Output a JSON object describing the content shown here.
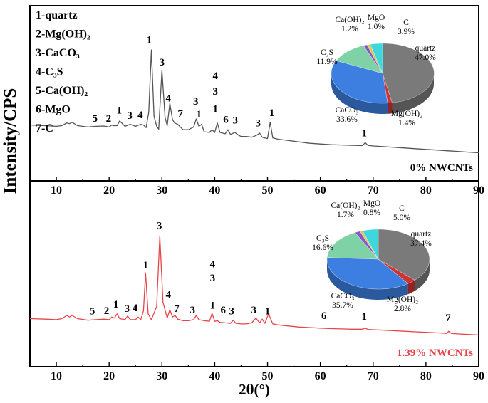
{
  "figure": {
    "ylabel": "Intensity/CPS",
    "xlabel": "2θ(°)",
    "legend": [
      "1-quartz",
      "2-Mg(OH)₂",
      "3-CaCO₃",
      "4-C₃S",
      "5-Ca(OH)₂",
      "6-MgO",
      "7-C"
    ],
    "colors": {
      "top": "#555555",
      "bottom": "#e8454a",
      "quartz": "#7a7a7a",
      "caco3": "#3d7fe0",
      "c3s": "#7fd1a6",
      "mgoh2": "#cc3333",
      "caoh2": "#8a56c7",
      "mgo": "#e3c84a",
      "c": "#3fd7de"
    }
  },
  "chart_data": [
    {
      "type": "line",
      "panel": "top",
      "title": "",
      "label": "0% NWCNTs",
      "xlabel": "2θ(°)",
      "ylabel": "Intensity/CPS",
      "xlim": [
        5,
        90
      ],
      "x_ticks": [
        "10",
        "20",
        "30",
        "40",
        "50",
        "60",
        "70",
        "80",
        "90"
      ],
      "x": [
        5,
        8,
        10,
        11,
        12,
        12.5,
        13,
        14,
        16,
        17.5,
        19,
        20,
        20.5,
        20.8,
        21.5,
        22,
        23,
        24,
        25,
        26,
        26.5,
        27,
        27.5,
        28,
        28.5,
        29,
        29.4,
        30,
        30.6,
        31,
        31.5,
        32,
        32.4,
        33,
        34,
        35,
        36,
        36.5,
        37,
        37.5,
        38,
        39,
        39.5,
        40,
        40.5,
        41,
        42,
        42.5,
        43,
        43.8,
        44.5,
        45,
        46,
        47,
        48,
        48.5,
        49,
        50,
        50.5,
        51,
        52,
        54,
        56,
        58,
        60,
        62,
        64,
        66,
        68,
        68.5,
        69,
        70,
        72,
        74,
        76,
        78,
        80,
        82,
        84,
        86,
        88,
        90
      ],
      "y": [
        31,
        30,
        29,
        30,
        34,
        33,
        35,
        30,
        28,
        29,
        29.5,
        28,
        31,
        30,
        30,
        37,
        29,
        32,
        29,
        32,
        31,
        27,
        50,
        142,
        44,
        29,
        25,
        112,
        42,
        30,
        63,
        39,
        34,
        32,
        24,
        24,
        28,
        40,
        29,
        32,
        21,
        20,
        24,
        20,
        34,
        20,
        18,
        24,
        17,
        20,
        16,
        14,
        14,
        13,
        16,
        19,
        13,
        11,
        35,
        12,
        10,
        8,
        6,
        4,
        3,
        2,
        1.5,
        1,
        0.5,
        5,
        1,
        0,
        -1,
        -2,
        -3,
        -4,
        -5,
        -6,
        -7,
        -8,
        -9,
        -10
      ],
      "peak_labels": [
        {
          "x": 17.3,
          "y": 36,
          "text": "5"
        },
        {
          "x": 19.9,
          "y": 36,
          "text": "2"
        },
        {
          "x": 21.9,
          "y": 48,
          "text": "1"
        },
        {
          "x": 23.9,
          "y": 40,
          "text": "3"
        },
        {
          "x": 25.9,
          "y": 41,
          "text": "4"
        },
        {
          "x": 27.6,
          "y": 152,
          "text": "1"
        },
        {
          "x": 30.0,
          "y": 119,
          "text": "3"
        },
        {
          "x": 31.2,
          "y": 66,
          "text": "4"
        },
        {
          "x": 33.5,
          "y": 43,
          "text": "7"
        },
        {
          "x": 36.4,
          "y": 61,
          "text": "3"
        },
        {
          "x": 37.0,
          "y": 42,
          "text": "1"
        },
        {
          "x": 40.1,
          "y": 99,
          "text": "4"
        },
        {
          "x": 40.1,
          "y": 76,
          "text": "3"
        },
        {
          "x": 40.1,
          "y": 50,
          "text": "1"
        },
        {
          "x": 42.1,
          "y": 34,
          "text": "6"
        },
        {
          "x": 43.9,
          "y": 33,
          "text": "3"
        },
        {
          "x": 48.2,
          "y": 29,
          "text": "3"
        },
        {
          "x": 50.8,
          "y": 44,
          "text": "1"
        },
        {
          "x": 68.3,
          "y": 14,
          "text": "1"
        }
      ],
      "pie": {
        "type": "pie",
        "slices": [
          {
            "label": "quartz",
            "value": 47.0,
            "text": "47.0%"
          },
          {
            "label": "Mg(OH)₂",
            "value": 1.4,
            "text": "1.4%"
          },
          {
            "label": "CaCO₃",
            "value": 33.6,
            "text": "33.6%"
          },
          {
            "label": "C₃S",
            "value": 11.9,
            "text": "11.9%"
          },
          {
            "label": "Ca(OH)₂",
            "value": 1.2,
            "text": "1.2%"
          },
          {
            "label": "MgO",
            "value": 1.0,
            "text": "1.0%"
          },
          {
            "label": "C",
            "value": 3.9,
            "text": "3.9%"
          }
        ]
      }
    },
    {
      "type": "line",
      "panel": "bottom",
      "title": "",
      "label": "1.39% NWCNTs",
      "xlabel": "2θ(°)",
      "ylabel": "Intensity/CPS",
      "xlim": [
        5,
        90
      ],
      "x_ticks": [
        "10",
        "20",
        "30",
        "40",
        "50",
        "60",
        "70",
        "80",
        "90"
      ],
      "x": [
        5,
        8,
        10,
        11,
        12,
        12.5,
        13,
        14,
        16,
        17.5,
        19,
        20,
        20.5,
        21,
        21.5,
        22,
        23,
        23.5,
        24,
        25,
        25.5,
        26,
        26.5,
        26.9,
        27.4,
        28,
        29,
        29.6,
        30.2,
        31,
        31.5,
        32,
        32.5,
        33,
        34,
        35,
        36,
        36.5,
        37,
        38,
        39,
        39.5,
        40,
        40.5,
        41,
        42,
        43,
        43.5,
        44,
        45,
        46,
        47,
        47.8,
        48.5,
        49,
        49.5,
        50.2,
        51,
        52,
        54,
        56,
        58,
        60,
        62,
        64,
        66,
        68,
        68.5,
        69,
        70,
        72,
        74,
        76,
        78,
        80,
        82,
        84,
        84.3,
        84.8,
        86,
        88,
        90
      ],
      "y": [
        21,
        20,
        19,
        21,
        27,
        24,
        27,
        21,
        18,
        19,
        20,
        19,
        24,
        22,
        30,
        21,
        19,
        26,
        19,
        19,
        24,
        19,
        36,
        108,
        30,
        19,
        44,
        178,
        52,
        22,
        38,
        24,
        27,
        20,
        17,
        17,
        19,
        27,
        19,
        17,
        16,
        31,
        16,
        17,
        14,
        13,
        12,
        18,
        12,
        11,
        11,
        13,
        22,
        13,
        20,
        12,
        30,
        11,
        9,
        7,
        5,
        4,
        3,
        2,
        1.5,
        1,
        1,
        3,
        0.5,
        0,
        -1,
        -2,
        -3,
        -4,
        -5,
        -6,
        -7,
        -3,
        -7,
        -8,
        -9,
        -10
      ],
      "peak_labels": [
        {
          "x": 16.8,
          "y": 29,
          "text": "5"
        },
        {
          "x": 19.5,
          "y": 30,
          "text": "2"
        },
        {
          "x": 21.3,
          "y": 42,
          "text": "1"
        },
        {
          "x": 23.4,
          "y": 34,
          "text": "3"
        },
        {
          "x": 24.9,
          "y": 35,
          "text": "4"
        },
        {
          "x": 26.9,
          "y": 116,
          "text": "1"
        },
        {
          "x": 29.5,
          "y": 191,
          "text": "3"
        },
        {
          "x": 31.2,
          "y": 60,
          "text": "4"
        },
        {
          "x": 32.8,
          "y": 34,
          "text": "7"
        },
        {
          "x": 35.8,
          "y": 31,
          "text": "3"
        },
        {
          "x": 39.6,
          "y": 118,
          "text": "4"
        },
        {
          "x": 39.6,
          "y": 92,
          "text": "3"
        },
        {
          "x": 39.6,
          "y": 40,
          "text": "1"
        },
        {
          "x": 41.6,
          "y": 31,
          "text": "6"
        },
        {
          "x": 43.2,
          "y": 29,
          "text": "3"
        },
        {
          "x": 47.4,
          "y": 31,
          "text": "3"
        },
        {
          "x": 50.0,
          "y": 29,
          "text": "1"
        },
        {
          "x": 60.7,
          "y": 20,
          "text": "6"
        },
        {
          "x": 68.3,
          "y": 19,
          "text": "1"
        },
        {
          "x": 84.2,
          "y": 16,
          "text": "7"
        }
      ],
      "pie": {
        "type": "pie",
        "slices": [
          {
            "label": "quartz",
            "value": 37.4,
            "text": "37.4%"
          },
          {
            "label": "Mg(OH)₂",
            "value": 2.8,
            "text": "2.8%"
          },
          {
            "label": "CaCO₃",
            "value": 35.7,
            "text": "35.7%"
          },
          {
            "label": "C₃S",
            "value": 16.6,
            "text": "16.6%"
          },
          {
            "label": "Ca(OH)₂",
            "value": 1.7,
            "text": "1.7%"
          },
          {
            "label": "MgO",
            "value": 0.8,
            "text": "0.8%"
          },
          {
            "label": "C",
            "value": 5.0,
            "text": "5.0%"
          }
        ]
      }
    }
  ]
}
